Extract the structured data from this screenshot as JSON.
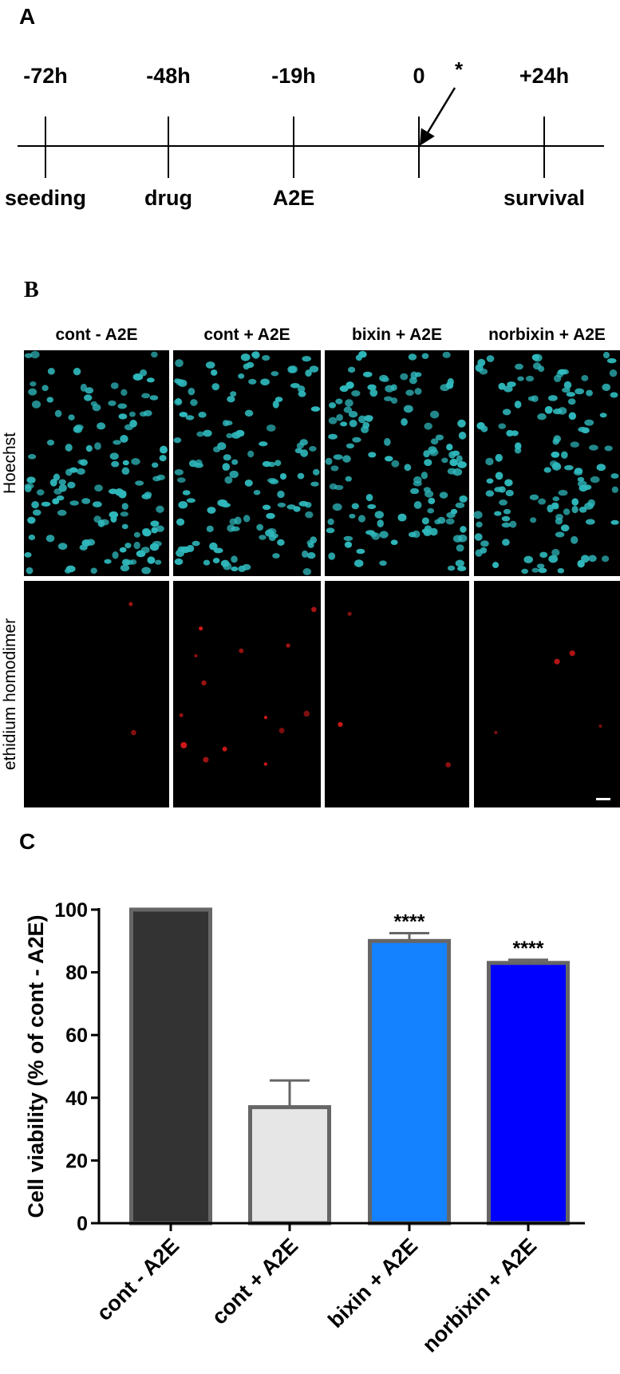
{
  "panel_a": {
    "label": "A",
    "times": [
      "-72h",
      "-48h",
      "-19h",
      "0",
      "+24h"
    ],
    "events": [
      "seeding",
      "drug",
      "A2E",
      null,
      "survival"
    ],
    "marker": "*"
  },
  "panel_b": {
    "label": "B",
    "columns": [
      "cont - A2E",
      "cont + A2E",
      "bixin + A2E",
      "norbixin + A2E"
    ],
    "rows": [
      "Hoechst",
      "ethidium homodimer"
    ]
  },
  "chart_data": {
    "type": "bar",
    "panel_label": "C",
    "y_label": "Cell viability (% of cont - A2E)",
    "categories": [
      "cont - A2E",
      "cont + A2E",
      "bixin + A2E",
      "norbixin + A2E"
    ],
    "values": [
      100,
      37,
      90,
      83
    ],
    "errors": [
      0,
      8.5,
      2.5,
      1
    ],
    "significance": [
      null,
      null,
      "****",
      "****"
    ],
    "colors": [
      "#333333",
      "#e6e6e6",
      "#1481ff",
      "#0000ff"
    ],
    "ylim": [
      0,
      100
    ],
    "yticks": [
      0,
      20,
      40,
      60,
      80,
      100
    ]
  }
}
